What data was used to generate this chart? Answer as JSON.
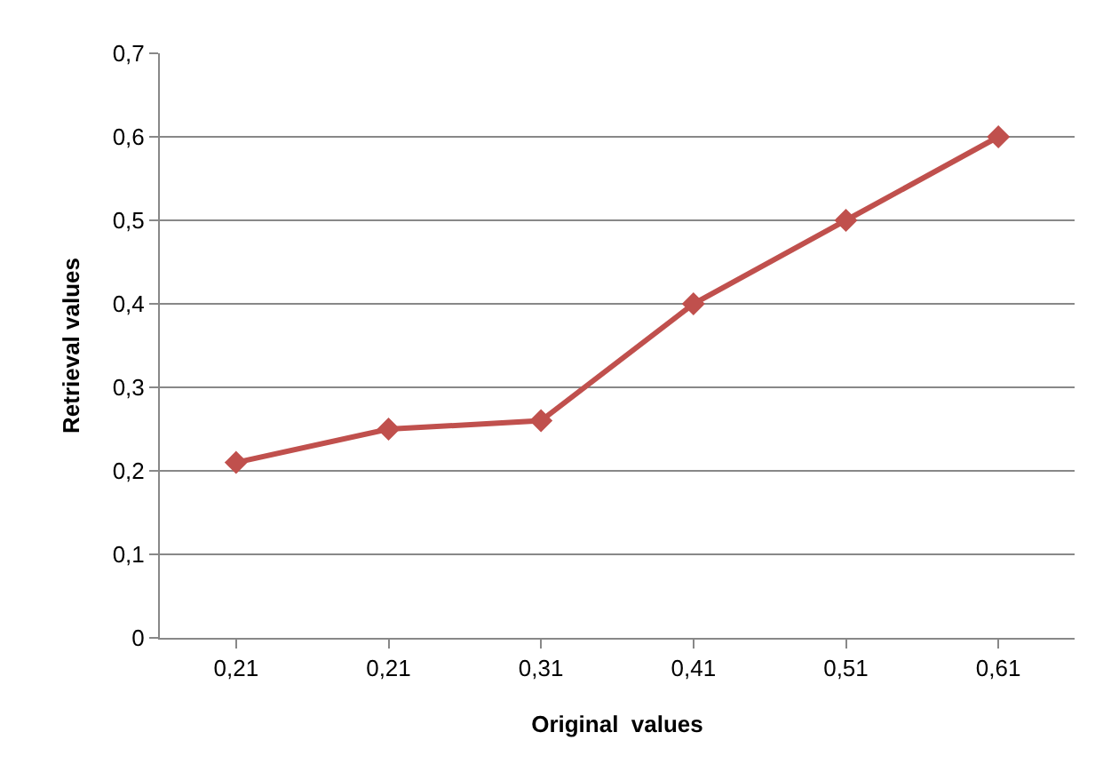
{
  "chart_data": {
    "type": "line",
    "xlabel": "Original  values",
    "ylabel": "Retrieval values",
    "categories": [
      "0,21",
      "0,21",
      "0,31",
      "0,41",
      "0,51",
      "0,61"
    ],
    "series": [
      {
        "color": "#c0504d",
        "values": [
          0.21,
          0.25,
          0.26,
          0.4,
          0.5,
          0.6
        ]
      }
    ],
    "ylim": [
      0,
      0.7
    ],
    "yticks": [
      {
        "value": 0,
        "label": "0"
      },
      {
        "value": 0.1,
        "label": "0,1"
      },
      {
        "value": 0.2,
        "label": "0,2"
      },
      {
        "value": 0.3,
        "label": "0,3"
      },
      {
        "value": 0.4,
        "label": "0,4"
      },
      {
        "value": 0.5,
        "label": "0,5"
      },
      {
        "value": 0.6,
        "label": "0,6"
      },
      {
        "value": 0.7,
        "label": "0,7"
      }
    ],
    "grid": "y",
    "marker": "diamond",
    "line_style": "solid",
    "legend": false
  }
}
